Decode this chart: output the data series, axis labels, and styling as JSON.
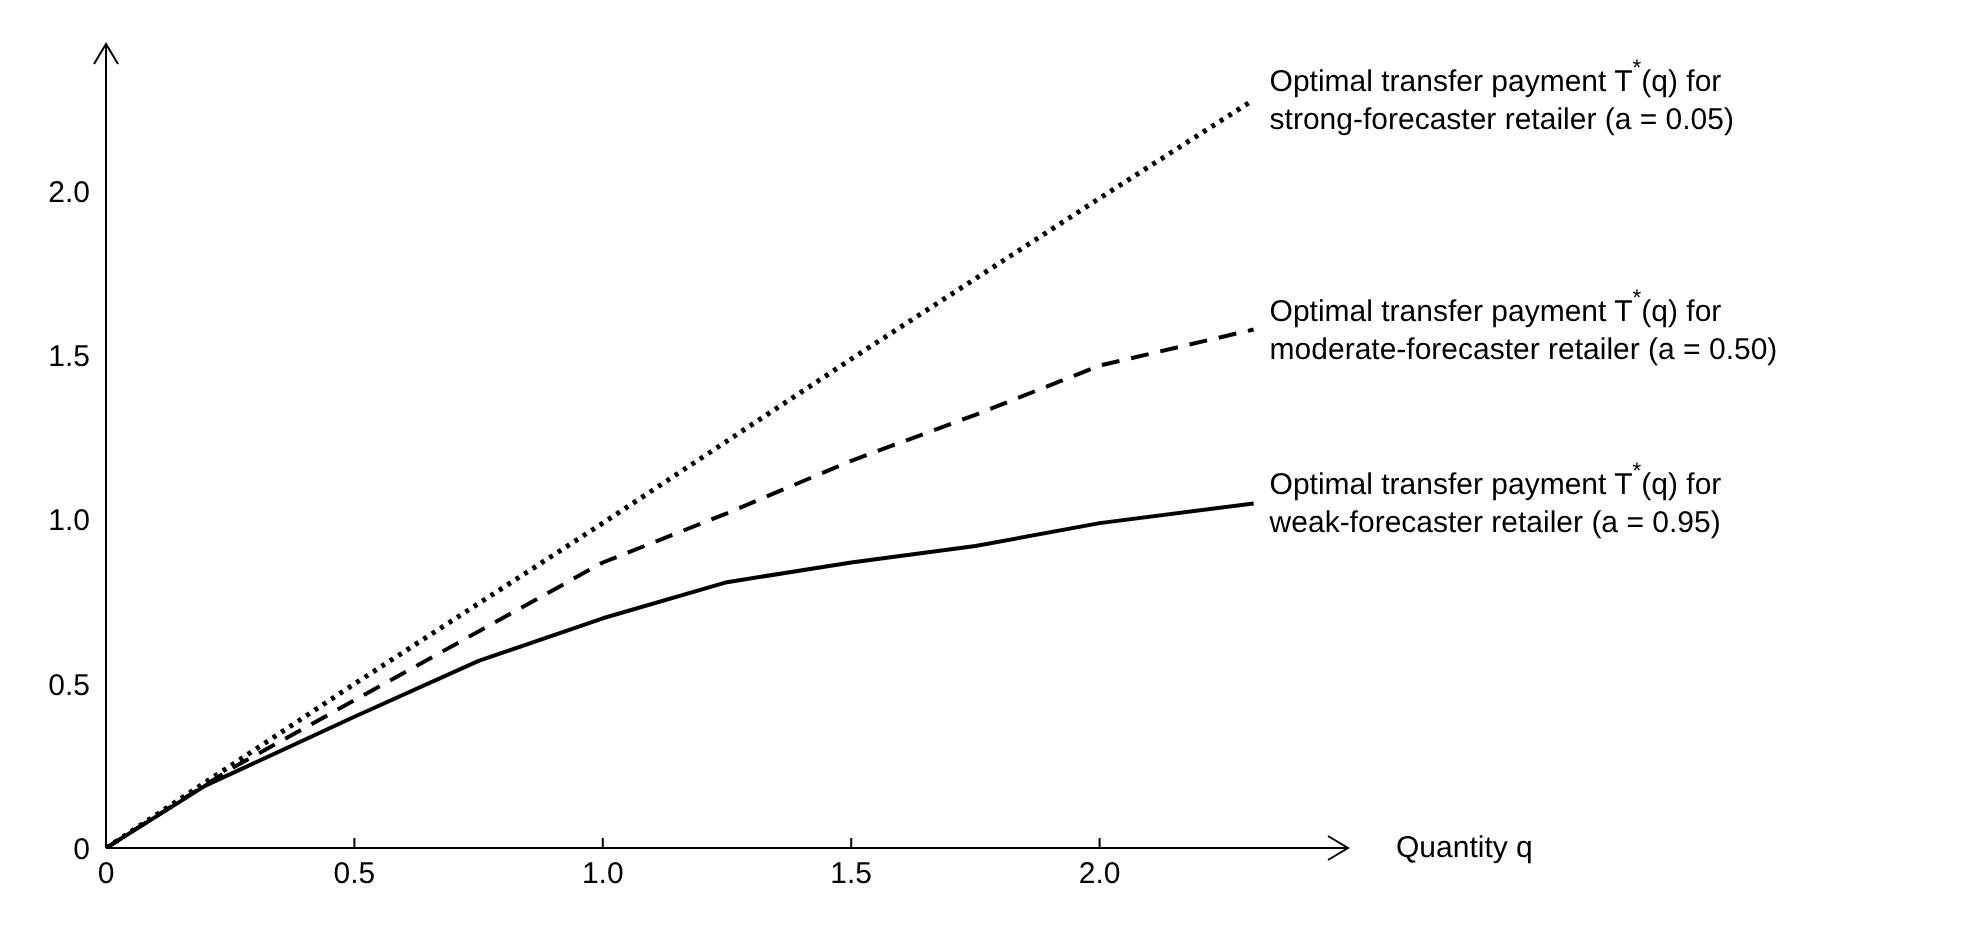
{
  "chart_data": {
    "type": "line",
    "xlabel": "Quantity q",
    "marker": "none",
    "grid": false,
    "xlim": [
      0,
      2.5
    ],
    "xticks": [
      0,
      {
        "value": 0.5,
        "label": "0.5"
      },
      {
        "value": 1,
        "label": "1.0"
      },
      {
        "value": 1.5,
        "label": "1.5"
      },
      {
        "value": 2,
        "label": "2.0"
      }
    ],
    "ylim": [
      0,
      2.45
    ],
    "yticks": [
      0,
      {
        "value": 0.5,
        "label": "0.5"
      },
      {
        "value": 1,
        "label": "1.0"
      },
      {
        "value": 1.5,
        "label": "1.5"
      },
      {
        "value": 2,
        "label": "2.0"
      }
    ],
    "series": [
      {
        "name": "Optimal transfer payment T$^{*}$(q) for\nstrong-forecaster retailer (a = 0.05)",
        "color": "#000000",
        "line_style": "dotted",
        "x": [
          0,
          0.5,
          1.0,
          1.5,
          2.0,
          2.31
        ],
        "values": [
          0,
          0.5,
          0.99,
          1.49,
          1.98,
          2.28
        ]
      },
      {
        "name": "Optimal transfer payment T$^{*}$(q) for\nmoderate-forecaster retailer (a = 0.50)",
        "color": "#000000",
        "line_style": "dashed",
        "x": [
          0,
          0.25,
          0.5,
          0.75,
          1.0,
          1.25,
          1.5,
          1.75,
          2.0,
          2.31
        ],
        "values": [
          0,
          0.24,
          0.45,
          0.66,
          0.87,
          1.02,
          1.18,
          1.32,
          1.47,
          1.58
        ]
      },
      {
        "name": "Optimal transfer payment T$^{*}$(q) for\nweak-forecaster retailer (a = 0.95)",
        "color": "#000000",
        "line_style": "solid",
        "x": [
          0,
          0.2,
          0.5,
          0.75,
          1.0,
          1.25,
          1.5,
          1.75,
          2.0,
          2.31
        ],
        "values": [
          0,
          0.19,
          0.4,
          0.57,
          0.7,
          0.81,
          0.87,
          0.92,
          0.99,
          1.05
        ]
      }
    ]
  }
}
